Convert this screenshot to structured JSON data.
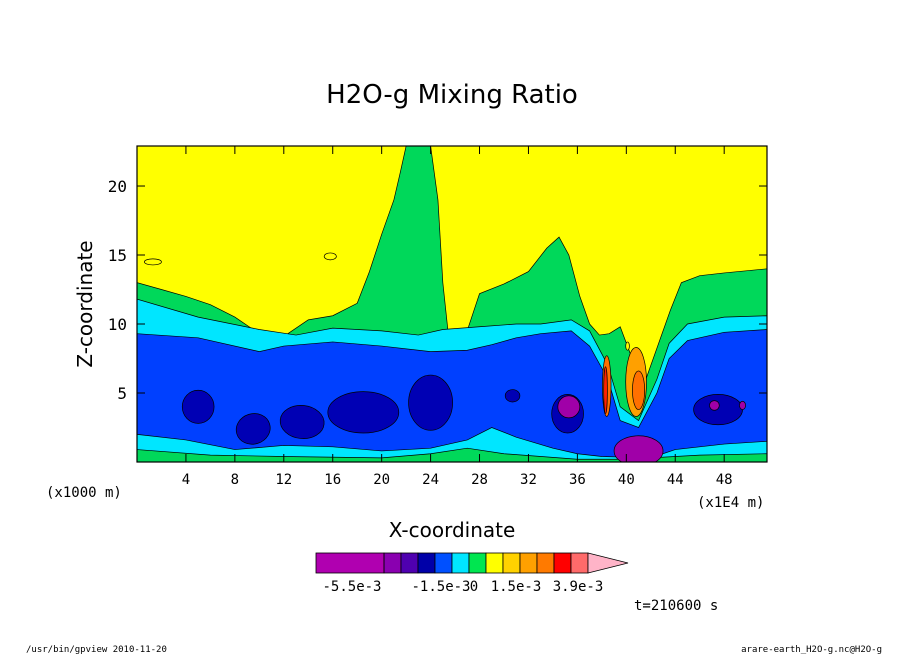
{
  "chart_data": {
    "type": "heatmap",
    "title": "H2O-g Mixing Ratio",
    "xlabel": "X-coordinate",
    "ylabel": "Z-coordinate",
    "x_unit_left": "(x1000 m)",
    "x_unit_right": "(x1E4 m)",
    "xlim": [
      0,
      51.5
    ],
    "ylim": [
      0,
      22.9
    ],
    "x_ticks": [
      4,
      8,
      12,
      16,
      20,
      24,
      28,
      32,
      36,
      40,
      44,
      48
    ],
    "x_tick_labels": [
      "4",
      "8",
      "12",
      "16",
      "20",
      "24",
      "28",
      "32",
      "36",
      "40",
      "44",
      "48"
    ],
    "y_ticks": [
      5,
      10,
      15,
      20
    ],
    "y_tick_labels": [
      "5",
      "10",
      "15",
      "20"
    ],
    "time_label": "t=210600 s",
    "colorbar": {
      "colors": [
        "#b000b0",
        "#b000b0",
        "#b000b0",
        "#b000b0",
        "#8a00b0",
        "#4f00b0",
        "#0000a8",
        "#0050ff",
        "#00e6ff",
        "#00e650",
        "#ffff00",
        "#ffd200",
        "#ffa000",
        "#ff7a00",
        "#ff0000",
        "#ff6a6a",
        "#ffb4c8"
      ],
      "tick_labels": [
        "-5.5e-3",
        "-1.5e-3",
        "0",
        "1.5e-3",
        "3.9e-3"
      ]
    },
    "field": {
      "levels": [
        "deep-blue",
        "blue",
        "cyan",
        "green",
        "yellow"
      ],
      "colors": {
        "purple": "#a000a8",
        "deep-blue": "#0000b4",
        "blue": "#0040ff",
        "cyan": "#00e6ff",
        "green": "#00d85a",
        "yellow": "#ffff00",
        "orange": "#ffa000",
        "dark-orange": "#ff7000",
        "red": "#ff2000"
      },
      "bands": {
        "blue_top": [
          [
            0,
            9.3
          ],
          [
            5,
            9.0
          ],
          [
            10,
            8.0
          ],
          [
            12,
            8.4
          ],
          [
            16,
            8.7
          ],
          [
            20,
            8.4
          ],
          [
            24,
            8.0
          ],
          [
            27,
            8.1
          ],
          [
            29,
            8.5
          ],
          [
            31,
            9.0
          ],
          [
            33,
            9.3
          ],
          [
            35.5,
            9.5
          ],
          [
            37,
            8.4
          ],
          [
            38.5,
            6.0
          ],
          [
            39.5,
            3.0
          ],
          [
            41,
            2.5
          ],
          [
            42.5,
            5.0
          ],
          [
            43.5,
            7.5
          ],
          [
            45,
            8.8
          ],
          [
            48,
            9.4
          ],
          [
            51.5,
            9.6
          ]
        ],
        "cyan_top": [
          [
            0,
            11.8
          ],
          [
            5,
            10.5
          ],
          [
            10,
            9.6
          ],
          [
            13,
            9.2
          ],
          [
            16,
            9.7
          ],
          [
            20,
            9.5
          ],
          [
            23,
            9.2
          ],
          [
            25,
            9.6
          ],
          [
            28,
            9.8
          ],
          [
            31,
            10.0
          ],
          [
            33,
            10.0
          ],
          [
            35.5,
            10.3
          ],
          [
            37,
            9.5
          ],
          [
            38.5,
            7.0
          ],
          [
            39.5,
            4.0
          ],
          [
            41,
            3.0
          ],
          [
            42.5,
            6.0
          ],
          [
            43.5,
            8.6
          ],
          [
            45,
            10.0
          ],
          [
            48,
            10.5
          ],
          [
            51.5,
            10.6
          ]
        ],
        "green_top": [
          [
            0,
            13.0
          ],
          [
            2,
            12.5
          ],
          [
            4,
            12.0
          ],
          [
            6,
            11.4
          ],
          [
            8,
            10.5
          ],
          [
            10,
            9.3
          ],
          [
            11,
            8.5
          ],
          [
            12,
            9.1
          ],
          [
            14,
            10.3
          ],
          [
            16,
            10.6
          ],
          [
            18,
            11.5
          ],
          [
            19,
            13.8
          ],
          [
            20,
            16.5
          ],
          [
            21,
            19.0
          ],
          [
            21.5,
            20.9
          ],
          [
            22,
            22.9
          ],
          [
            24,
            22.9
          ],
          [
            24.6,
            19.0
          ],
          [
            25.0,
            13.0
          ],
          [
            25.6,
            8.0
          ],
          [
            26.1,
            4.0
          ],
          [
            26.8,
            9.0
          ],
          [
            28,
            12.2
          ],
          [
            30,
            12.9
          ],
          [
            32,
            13.8
          ],
          [
            33.5,
            15.5
          ],
          [
            34.5,
            16.3
          ],
          [
            35.3,
            15.0
          ],
          [
            36.2,
            12.0
          ],
          [
            37,
            10.0
          ],
          [
            37.8,
            9.2
          ],
          [
            38.6,
            9.3
          ],
          [
            39.5,
            9.8
          ],
          [
            40.6,
            7.2
          ],
          [
            41.6,
            6.0
          ],
          [
            42.6,
            8.5
          ],
          [
            43.6,
            11.0
          ],
          [
            44.5,
            13.0
          ],
          [
            46,
            13.5
          ],
          [
            48,
            13.7
          ],
          [
            51.5,
            14.0
          ]
        ],
        "deep_blobs": [
          [
            5.0,
            4.0,
            1.3,
            1.2,
            0
          ],
          [
            9.5,
            2.4,
            1.4,
            1.1,
            -0.3
          ],
          [
            13.5,
            2.9,
            1.8,
            1.2,
            0.1
          ],
          [
            18.5,
            3.6,
            2.9,
            1.5,
            0
          ],
          [
            24.0,
            4.3,
            1.8,
            2.0,
            0
          ],
          [
            30.7,
            4.8,
            0.6,
            0.45,
            0
          ],
          [
            35.2,
            3.5,
            1.3,
            1.4,
            0
          ],
          [
            47.5,
            3.8,
            2.0,
            1.1,
            0
          ]
        ],
        "purple_blobs": [
          [
            35.3,
            4.0,
            0.9,
            0.8,
            0
          ],
          [
            41.0,
            0.8,
            2.0,
            1.1,
            0
          ],
          [
            47.2,
            4.1,
            0.4,
            0.35,
            0
          ],
          [
            49.5,
            4.1,
            0.25,
            0.3,
            0
          ]
        ],
        "yellow_dots": [
          [
            1.3,
            14.5,
            0.7,
            0.22,
            0
          ],
          [
            15.8,
            14.9,
            0.5,
            0.25,
            0
          ],
          [
            40.1,
            8.4,
            0.15,
            0.3,
            0
          ]
        ],
        "plume_orange": [
          [
            40.8,
            5.8,
            0.85,
            2.5,
            0
          ]
        ],
        "plume_dark": [
          [
            41.0,
            5.2,
            0.5,
            1.4,
            0
          ],
          [
            38.4,
            5.5,
            0.35,
            2.2,
            0
          ]
        ],
        "plume_red": [
          [
            38.3,
            5.2,
            0.15,
            1.7,
            0
          ]
        ]
      }
    }
  },
  "footer": {
    "left": "/usr/bin/gpview  2010-11-20",
    "right": "arare-earth_H2O-g.nc@H2O-g"
  }
}
